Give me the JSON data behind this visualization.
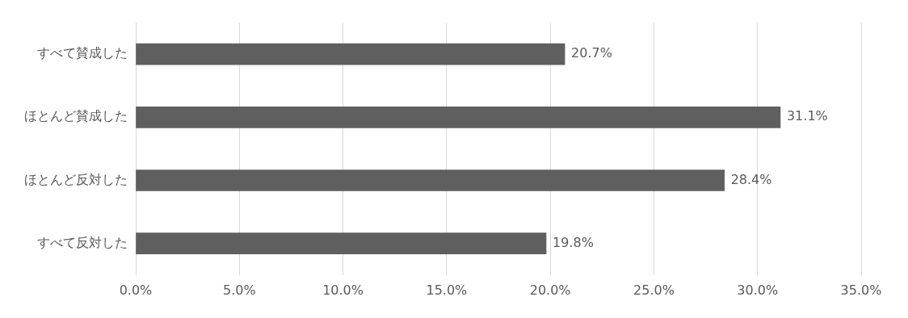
{
  "chart_data": {
    "type": "bar",
    "orientation": "horizontal",
    "categories": [
      "すべて賛成した",
      "ほとんど賛成した",
      "ほとんど反対した",
      "すべて反対した"
    ],
    "values": [
      20.7,
      31.1,
      28.4,
      19.8
    ],
    "value_labels": [
      "20.7%",
      "31.1%",
      "28.4%",
      "19.8%"
    ],
    "color": "#5f5f5f",
    "xlim": [
      0,
      35
    ],
    "xticks": [
      {
        "value": 0,
        "label": "0.0%"
      },
      {
        "value": 5,
        "label": "5.0%"
      },
      {
        "value": 10,
        "label": "10.0%"
      },
      {
        "value": 15,
        "label": "15.0%"
      },
      {
        "value": 20,
        "label": "20.0%"
      },
      {
        "value": 25,
        "label": "25.0%"
      },
      {
        "value": 30,
        "label": "30.0%"
      },
      {
        "value": 35,
        "label": "35.0%"
      }
    ],
    "grid": "x",
    "legend": false
  }
}
